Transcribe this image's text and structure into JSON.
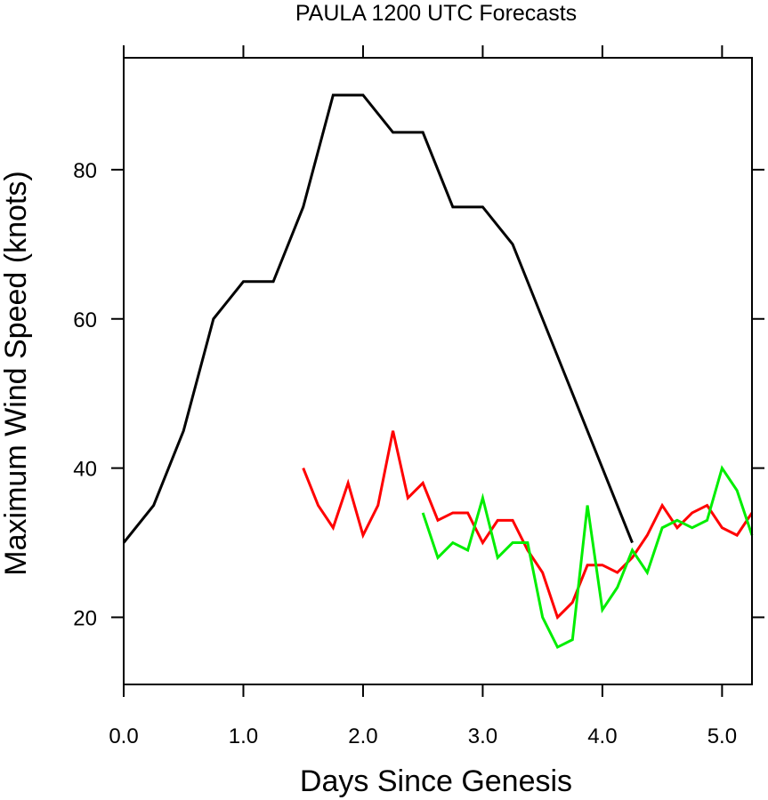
{
  "chart_data": {
    "type": "line",
    "title": "PAULA 1200 UTC Forecasts",
    "xlabel": "Days Since Genesis",
    "ylabel": "Maximum Wind Speed (knots)",
    "xlim": [
      0.0,
      5.25
    ],
    "ylim": [
      11,
      95
    ],
    "x_ticks": [
      0.0,
      1.0,
      2.0,
      3.0,
      4.0,
      5.0
    ],
    "x_tick_labels": [
      "0.0",
      "1.0",
      "2.0",
      "3.0",
      "4.0",
      "5.0"
    ],
    "y_ticks": [
      20,
      40,
      60,
      80
    ],
    "y_tick_labels": [
      "20",
      "40",
      "60",
      "80"
    ],
    "grid": false,
    "legend": "none",
    "series": [
      {
        "color": "#000000",
        "x": [
          0.0,
          0.25,
          0.5,
          0.75,
          1.0,
          1.25,
          1.5,
          1.75,
          2.0,
          2.25,
          2.5,
          2.75,
          3.0,
          3.25,
          3.5,
          3.75,
          4.0,
          4.25
        ],
        "y": [
          30,
          35,
          45,
          60,
          65,
          65,
          75,
          90,
          90,
          85,
          85,
          75,
          75,
          70,
          60,
          50,
          40,
          30
        ]
      },
      {
        "color": "#ff0000",
        "x": [
          1.5,
          1.625,
          1.75,
          1.875,
          2.0,
          2.125,
          2.25,
          2.375,
          2.5,
          2.625,
          2.75,
          2.875,
          3.0,
          3.125,
          3.25,
          3.375,
          3.5,
          3.625,
          3.75,
          3.875,
          4.0,
          4.125,
          4.25,
          4.375,
          4.5,
          4.625,
          4.75,
          4.875,
          5.0,
          5.125,
          5.25
        ],
        "y": [
          40,
          35,
          32,
          38,
          31,
          35,
          45,
          36,
          38,
          33,
          34,
          34,
          30,
          33,
          33,
          29,
          26,
          20,
          22,
          27,
          27,
          26,
          28,
          31,
          35,
          32,
          34,
          35,
          32,
          31,
          34
        ]
      },
      {
        "color": "#00ee00",
        "x": [
          2.5,
          2.625,
          2.75,
          2.875,
          3.0,
          3.125,
          3.25,
          3.375,
          3.5,
          3.625,
          3.75,
          3.875,
          4.0,
          4.125,
          4.25,
          4.375,
          4.5,
          4.625,
          4.75,
          4.875,
          5.0,
          5.125,
          5.25
        ],
        "y": [
          34,
          28,
          30,
          29,
          36,
          28,
          30,
          30,
          20,
          16,
          17,
          35,
          21,
          24,
          29,
          26,
          32,
          33,
          32,
          33,
          40,
          37,
          31
        ]
      }
    ]
  }
}
